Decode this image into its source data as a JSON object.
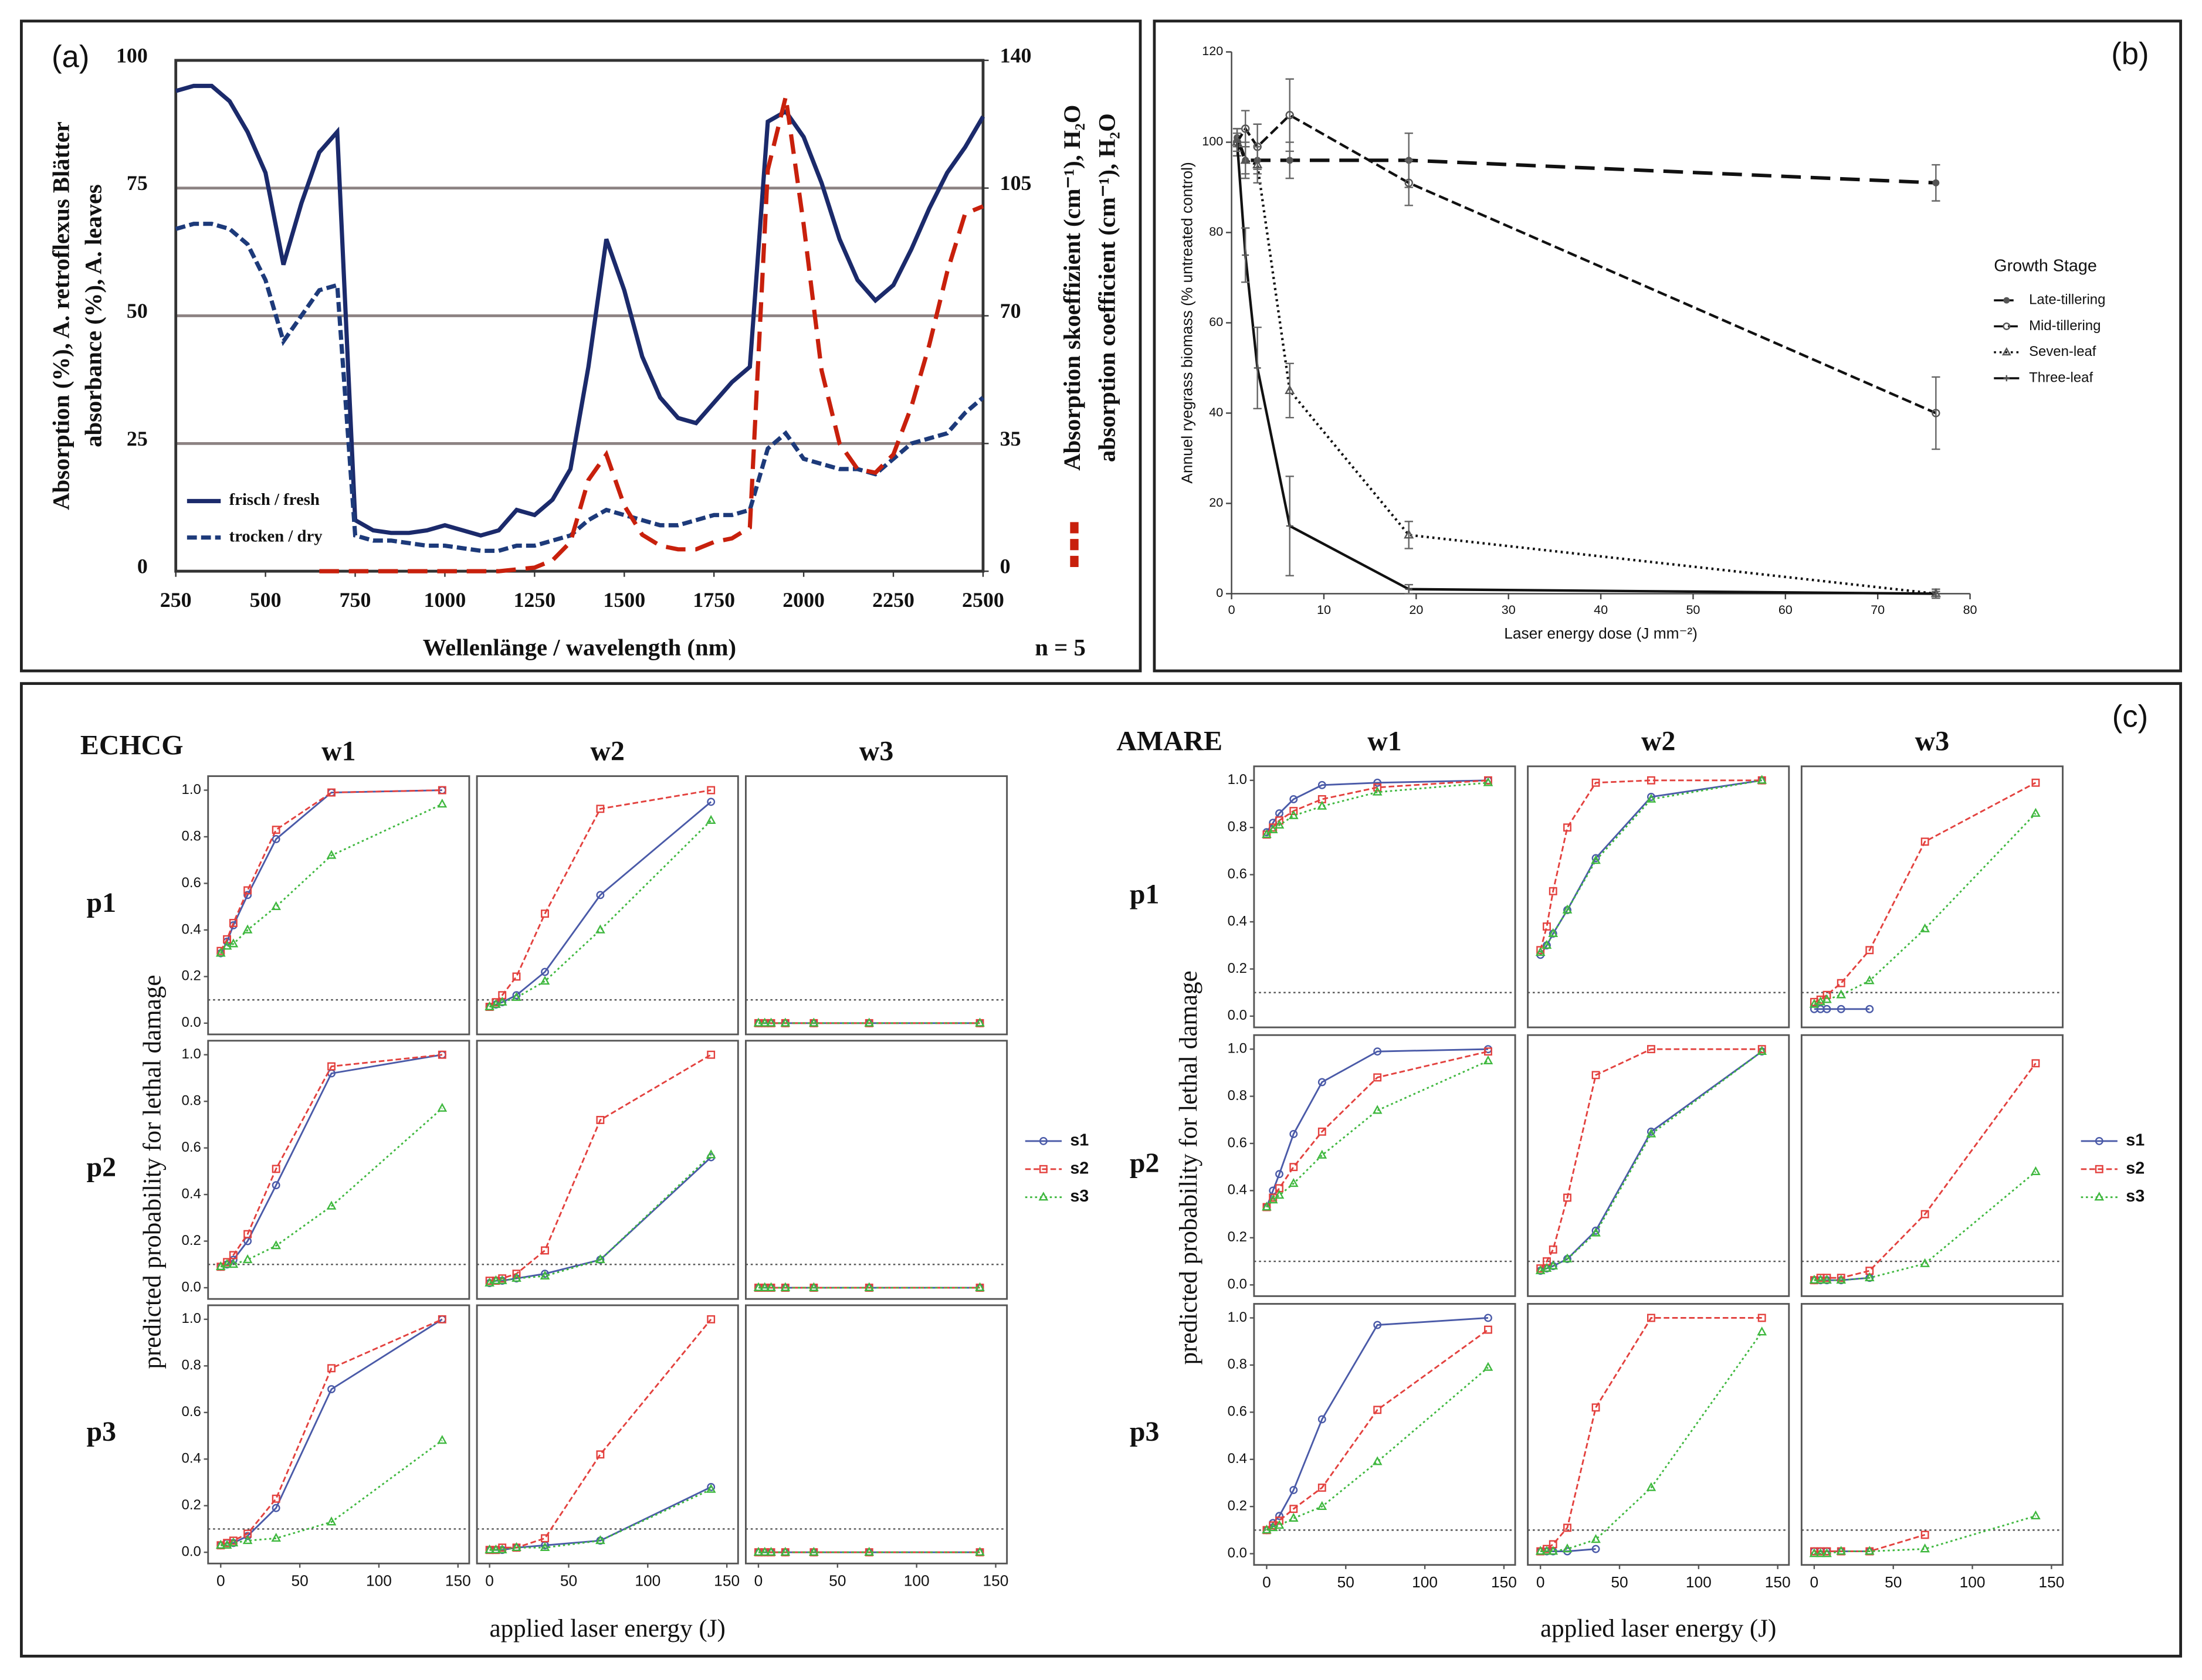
{
  "chart_data": [
    {
      "type": "line",
      "label": "(a)",
      "xlabel": "Wellenlänge / wavelength (nm)",
      "ylabel": [
        "Absorption (%), A. retroflexus Blätter",
        "absorbance (%), A. leaves"
      ],
      "y2label": [
        "Absorption skoeffizient (cm⁻¹), H₂O",
        "absorption coefficient (cm⁻¹), H₂O"
      ],
      "annotation": "n = 5",
      "xlim": [
        250,
        2500
      ],
      "xticks": [
        250,
        500,
        750,
        1000,
        1250,
        1500,
        1750,
        2000,
        2250,
        2500
      ],
      "ylim": [
        0,
        100
      ],
      "yticks": [
        0,
        25,
        50,
        75,
        100
      ],
      "y2lim": [
        0,
        140
      ],
      "y2ticks": [
        0,
        35,
        70,
        105,
        140
      ],
      "grid": true,
      "legend": "lower left",
      "x": [
        250,
        300,
        350,
        400,
        450,
        500,
        550,
        600,
        650,
        700,
        750,
        800,
        850,
        900,
        950,
        1000,
        1050,
        1100,
        1150,
        1200,
        1250,
        1300,
        1350,
        1400,
        1450,
        1500,
        1550,
        1600,
        1650,
        1700,
        1750,
        1800,
        1850,
        1900,
        1950,
        2000,
        2050,
        2100,
        2150,
        2200,
        2250,
        2300,
        2350,
        2400,
        2450,
        2500
      ],
      "series": [
        {
          "name": "frisch / fresh",
          "color": "#1b2a6b",
          "dash": "solid",
          "values": [
            94,
            95,
            95,
            92,
            86,
            78,
            60,
            72,
            82,
            86,
            10,
            8,
            7.5,
            7.5,
            8,
            9,
            8,
            7,
            8,
            12,
            11,
            14,
            20,
            40,
            65,
            55,
            42,
            34,
            30,
            29,
            33,
            37,
            40,
            88,
            90,
            85,
            76,
            65,
            57,
            53,
            56,
            63,
            71,
            78,
            83,
            89
          ]
        },
        {
          "name": "trocken / dry",
          "color": "#1d3a7a",
          "dash": "dashed",
          "values": [
            67,
            68,
            68,
            67,
            64,
            57,
            45,
            50,
            55,
            56,
            7,
            6,
            6,
            5.5,
            5,
            5,
            4.5,
            4,
            4,
            5,
            5,
            6,
            7,
            10,
            12,
            11,
            10,
            9,
            9,
            10,
            11,
            11,
            12,
            24,
            27,
            22,
            21,
            20,
            20,
            19,
            22,
            25,
            26,
            27,
            31,
            34
          ]
        },
        {
          "color": "#c8200c",
          "dash": "long-dash",
          "axis": "y2",
          "values": [
            null,
            null,
            null,
            null,
            null,
            null,
            null,
            null,
            0,
            0,
            0,
            0,
            0,
            0,
            0,
            0,
            0,
            0,
            0,
            0.5,
            1,
            3,
            8,
            25,
            32,
            18,
            10,
            7,
            6,
            6,
            8,
            9,
            12,
            110,
            130,
            95,
            55,
            35,
            28,
            27,
            32,
            45,
            62,
            82,
            98,
            100
          ]
        }
      ]
    },
    {
      "type": "line",
      "label": "(b)",
      "xlabel": "Laser energy dose (J mm⁻²)",
      "ylabel": "Annuel ryegrass biomass (% untreated control)",
      "legend_title": "Growth Stage",
      "legend": "right",
      "xlim": [
        0,
        80
      ],
      "xticks": [
        0,
        10,
        20,
        30,
        40,
        50,
        60,
        70,
        80
      ],
      "ylim": [
        0,
        120
      ],
      "yticks": [
        0,
        20,
        40,
        60,
        80,
        100,
        120
      ],
      "x": [
        0.6,
        1.5,
        2.8,
        6.3,
        19.2,
        76.3
      ],
      "series": [
        {
          "name": "Late-tillering",
          "color": "#111111",
          "dash": "long-dash",
          "marker": "dot",
          "values": [
            101,
            96,
            96,
            96,
            96,
            91
          ],
          "errors": [
            2,
            3,
            3,
            4,
            6,
            4
          ]
        },
        {
          "name": "Mid-tillering",
          "color": "#111111",
          "dash": "dashed",
          "marker": "circle",
          "values": [
            100,
            103,
            99,
            106,
            91,
            40
          ],
          "errors": [
            3,
            4,
            5,
            8,
            5,
            8
          ]
        },
        {
          "name": "Seven-leaf",
          "color": "#111111",
          "dash": "dotted",
          "marker": "triangle",
          "values": [
            100,
            96,
            95,
            45,
            13,
            0
          ],
          "errors": [
            3,
            4,
            4,
            6,
            3,
            1
          ]
        },
        {
          "name": "Three-leaf",
          "color": "#111111",
          "dash": "solid",
          "marker": "cross",
          "values": [
            100,
            75,
            50,
            15,
            1,
            0
          ],
          "errors": [
            2,
            6,
            9,
            11,
            1,
            0.5
          ]
        }
      ]
    },
    {
      "type": "facet",
      "title": "ECHCG",
      "xlabel": "applied laser energy (J)",
      "ylabel": "predicted probability for lethal damage",
      "columns": [
        "w1",
        "w2",
        "w3"
      ],
      "rows": [
        "p1",
        "p2",
        "p3"
      ],
      "xlim": [
        0,
        150
      ],
      "xticks": [
        0,
        50,
        100,
        150
      ],
      "ylim": [
        0,
        1
      ],
      "yticks": [
        {
          "value": 0,
          "label": "0.0"
        },
        0.2,
        0.4,
        0.6,
        0.8,
        {
          "value": 1,
          "label": "1.0"
        }
      ],
      "hline": 0.1,
      "x": [
        0,
        4,
        8,
        17,
        35,
        70,
        140
      ],
      "series": [
        {
          "name": "s1",
          "color": "#4a5aa8",
          "dash": "solid",
          "marker": "circle"
        },
        {
          "name": "s2",
          "color": "#e3413e",
          "dash": "dashed",
          "marker": "square"
        },
        {
          "name": "s3",
          "color": "#3fb83f",
          "dash": "dotted",
          "marker": "triangle"
        }
      ],
      "facets": [
        {
          "values": [
            [
              0.3,
              0.35,
              0.42,
              0.55,
              0.79,
              0.99,
              1.0
            ],
            [
              0.31,
              0.36,
              0.43,
              0.57,
              0.83,
              0.99,
              1.0
            ],
            [
              0.3,
              0.33,
              0.34,
              0.4,
              0.5,
              0.72,
              0.94
            ]
          ]
        },
        {
          "values": [
            [
              0.07,
              0.08,
              0.09,
              0.12,
              0.22,
              0.55,
              0.95
            ],
            [
              0.07,
              0.09,
              0.12,
              0.2,
              0.47,
              0.92,
              1.0
            ],
            [
              0.07,
              0.08,
              0.09,
              0.11,
              0.18,
              0.4,
              0.87
            ]
          ]
        },
        {
          "values": [
            [
              0,
              0,
              0,
              0,
              0,
              0,
              0
            ],
            [
              0,
              0,
              0,
              0,
              0,
              0,
              0
            ],
            [
              0,
              0,
              0,
              0,
              0,
              0,
              0
            ]
          ]
        },
        {
          "values": [
            [
              0.09,
              0.1,
              0.12,
              0.2,
              0.44,
              0.92,
              1.0
            ],
            [
              0.09,
              0.11,
              0.14,
              0.23,
              0.51,
              0.95,
              1.0
            ],
            [
              0.09,
              0.1,
              0.1,
              0.12,
              0.18,
              0.35,
              0.77
            ]
          ]
        },
        {
          "values": [
            [
              0.02,
              0.03,
              0.03,
              0.04,
              0.06,
              0.12,
              0.56
            ],
            [
              0.03,
              0.03,
              0.04,
              0.06,
              0.16,
              0.72,
              1.0
            ],
            [
              0.02,
              0.03,
              0.03,
              0.04,
              0.05,
              0.12,
              0.57
            ]
          ]
        },
        {
          "values": [
            [
              0,
              0,
              0,
              0,
              0,
              0,
              0
            ],
            [
              0,
              0,
              0,
              0,
              0,
              0,
              0
            ],
            [
              0,
              0,
              0,
              0,
              0,
              0,
              0
            ]
          ]
        },
        {
          "values": [
            [
              0.03,
              0.04,
              0.04,
              0.07,
              0.19,
              0.7,
              1.0
            ],
            [
              0.03,
              0.04,
              0.05,
              0.08,
              0.23,
              0.79,
              1.0
            ],
            [
              0.03,
              0.03,
              0.04,
              0.05,
              0.06,
              0.13,
              0.48
            ]
          ]
        },
        {
          "values": [
            [
              0.01,
              0.01,
              0.01,
              0.02,
              0.03,
              0.05,
              0.28
            ],
            [
              0.01,
              0.01,
              0.02,
              0.02,
              0.06,
              0.42,
              1.0
            ],
            [
              0.01,
              0.01,
              0.01,
              0.02,
              0.02,
              0.05,
              0.27
            ]
          ]
        },
        {
          "values": [
            [
              0,
              0,
              0,
              0,
              0,
              0,
              0
            ],
            [
              0,
              0,
              0,
              0,
              0,
              0,
              0
            ],
            [
              0,
              0,
              0,
              0,
              0,
              0,
              0
            ]
          ]
        }
      ]
    },
    {
      "type": "facet",
      "title": "AMARE",
      "label": "(c)",
      "xlabel": "applied laser energy (J)",
      "ylabel": "predicted probability for lethal damage",
      "columns": [
        "w1",
        "w2",
        "w3"
      ],
      "rows": [
        "p1",
        "p2",
        "p3"
      ],
      "xlim": [
        0,
        150
      ],
      "xticks": [
        0,
        50,
        100,
        150
      ],
      "ylim": [
        0,
        1
      ],
      "yticks": [
        {
          "value": 0,
          "label": "0.0"
        },
        0.2,
        0.4,
        0.6,
        0.8,
        {
          "value": 1,
          "label": "1.0"
        }
      ],
      "hline": 0.1,
      "x": [
        0,
        4,
        8,
        17,
        35,
        70,
        140
      ],
      "series": [
        {
          "name": "s1",
          "color": "#4a5aa8",
          "dash": "solid",
          "marker": "circle"
        },
        {
          "name": "s2",
          "color": "#e3413e",
          "dash": "dashed",
          "marker": "square"
        },
        {
          "name": "s3",
          "color": "#3fb83f",
          "dash": "dotted",
          "marker": "triangle"
        }
      ],
      "facets": [
        {
          "values": [
            [
              0.78,
              0.82,
              0.86,
              0.92,
              0.98,
              0.99,
              1.0
            ],
            [
              0.77,
              0.8,
              0.83,
              0.87,
              0.92,
              0.97,
              1.0
            ],
            [
              0.77,
              0.79,
              0.81,
              0.85,
              0.89,
              0.95,
              0.99
            ]
          ]
        },
        {
          "values": [
            [
              0.26,
              0.3,
              0.35,
              0.45,
              0.67,
              0.93,
              1.0
            ],
            [
              0.28,
              0.38,
              0.53,
              0.8,
              0.99,
              1.0,
              1.0
            ],
            [
              0.27,
              0.3,
              0.35,
              0.45,
              0.66,
              0.92,
              1.0
            ]
          ]
        },
        {
          "values": [
            [
              0.03,
              0.03,
              0.03,
              0.03,
              0.03,
              null,
              null
            ],
            [
              0.06,
              0.07,
              0.09,
              0.14,
              0.28,
              0.74,
              0.99
            ],
            [
              0.05,
              0.06,
              0.07,
              0.09,
              0.15,
              0.37,
              0.86
            ]
          ]
        },
        {
          "values": [
            [
              0.33,
              0.4,
              0.47,
              0.64,
              0.86,
              0.99,
              1.0
            ],
            [
              0.33,
              0.37,
              0.41,
              0.5,
              0.65,
              0.88,
              0.99
            ],
            [
              0.33,
              0.36,
              0.38,
              0.43,
              0.55,
              0.74,
              0.95
            ]
          ]
        },
        {
          "values": [
            [
              0.06,
              0.07,
              0.08,
              0.11,
              0.23,
              0.65,
              0.99
            ],
            [
              0.07,
              0.1,
              0.15,
              0.37,
              0.89,
              1.0,
              1.0
            ],
            [
              0.06,
              0.07,
              0.08,
              0.11,
              0.22,
              0.64,
              0.99
            ]
          ]
        },
        {
          "values": [
            [
              0.02,
              0.02,
              0.02,
              0.02,
              0.03,
              null,
              null
            ],
            [
              0.02,
              0.03,
              0.03,
              0.03,
              0.06,
              0.3,
              0.94
            ],
            [
              0.02,
              0.02,
              0.02,
              0.02,
              0.03,
              0.09,
              0.48
            ]
          ]
        },
        {
          "values": [
            [
              0.1,
              0.13,
              0.16,
              0.27,
              0.57,
              0.97,
              1.0
            ],
            [
              0.1,
              0.12,
              0.14,
              0.19,
              0.28,
              0.61,
              0.95
            ],
            [
              0.1,
              0.11,
              0.12,
              0.15,
              0.2,
              0.39,
              0.79
            ]
          ]
        },
        {
          "values": [
            [
              0.01,
              0.01,
              0.01,
              0.01,
              0.02,
              null,
              null
            ],
            [
              0.01,
              0.02,
              0.04,
              0.11,
              0.62,
              1.0,
              1.0
            ],
            [
              0.01,
              0.01,
              0.01,
              0.02,
              0.06,
              0.28,
              0.94
            ]
          ]
        },
        {
          "values": [
            [
              0.01,
              0.01,
              0.01,
              0.01,
              0.01,
              null,
              null
            ],
            [
              0.01,
              0.01,
              0.01,
              0.01,
              0.01,
              0.08,
              null
            ],
            [
              0,
              0,
              0,
              0.01,
              0.01,
              0.02,
              0.16
            ]
          ]
        }
      ]
    }
  ]
}
